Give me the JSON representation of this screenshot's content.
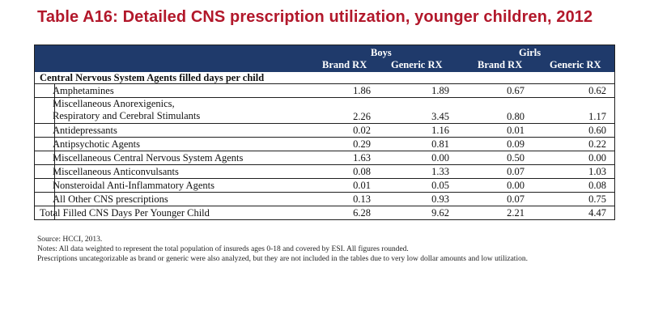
{
  "title": "Table A16: Detailed CNS prescription utilization, younger children, 2012",
  "table": {
    "group_boys": "Boys",
    "group_girls": "Girls",
    "columns": [
      "Brand RX",
      "Generic RX",
      "Brand RX",
      "Generic RX"
    ],
    "section_label": "Central Nervous System Agents filled days per child",
    "rows": [
      {
        "label": "Amphetamines",
        "values": [
          "1.86",
          "1.89",
          "0.67",
          "0.62"
        ]
      },
      {
        "label_line1": "Miscellaneous Anorexigenics,",
        "label_line2": "Respiratory and Cerebral Stimulants",
        "values": [
          "2.26",
          "3.45",
          "0.80",
          "1.17"
        ]
      },
      {
        "label": "Antidepressants",
        "values": [
          "0.02",
          "1.16",
          "0.01",
          "0.60"
        ]
      },
      {
        "label": "Antipsychotic Agents",
        "values": [
          "0.29",
          "0.81",
          "0.09",
          "0.22"
        ]
      },
      {
        "label": "Miscellaneous Central Nervous System Agents",
        "values": [
          "1.63",
          "0.00",
          "0.50",
          "0.00"
        ]
      },
      {
        "label": "Miscellaneous Anticonvulsants",
        "values": [
          "0.08",
          "1.33",
          "0.07",
          "1.03"
        ]
      },
      {
        "label": "Nonsteroidal Anti-Inflammatory Agents",
        "values": [
          "0.01",
          "0.05",
          "0.00",
          "0.08"
        ]
      },
      {
        "label": "All Other CNS prescriptions",
        "values": [
          "0.13",
          "0.93",
          "0.07",
          "0.75"
        ]
      }
    ],
    "total": {
      "label": "Total Filled CNS Days Per Younger Child",
      "values": [
        "6.28",
        "9.62",
        "2.21",
        "4.47"
      ]
    }
  },
  "notes": {
    "source": "Source: HCCI, 2013.",
    "line1": "Notes: All data weighted to represent the total population of insureds ages 0-18 and covered by ESI. All figures rounded.",
    "line2": "Prescriptions uncategorizable as brand or generic were also analyzed, but they are not included in the tables due to very low dollar amounts and low utilization."
  },
  "colors": {
    "title": "#b2182b",
    "header_bg": "#1f3a6b"
  }
}
